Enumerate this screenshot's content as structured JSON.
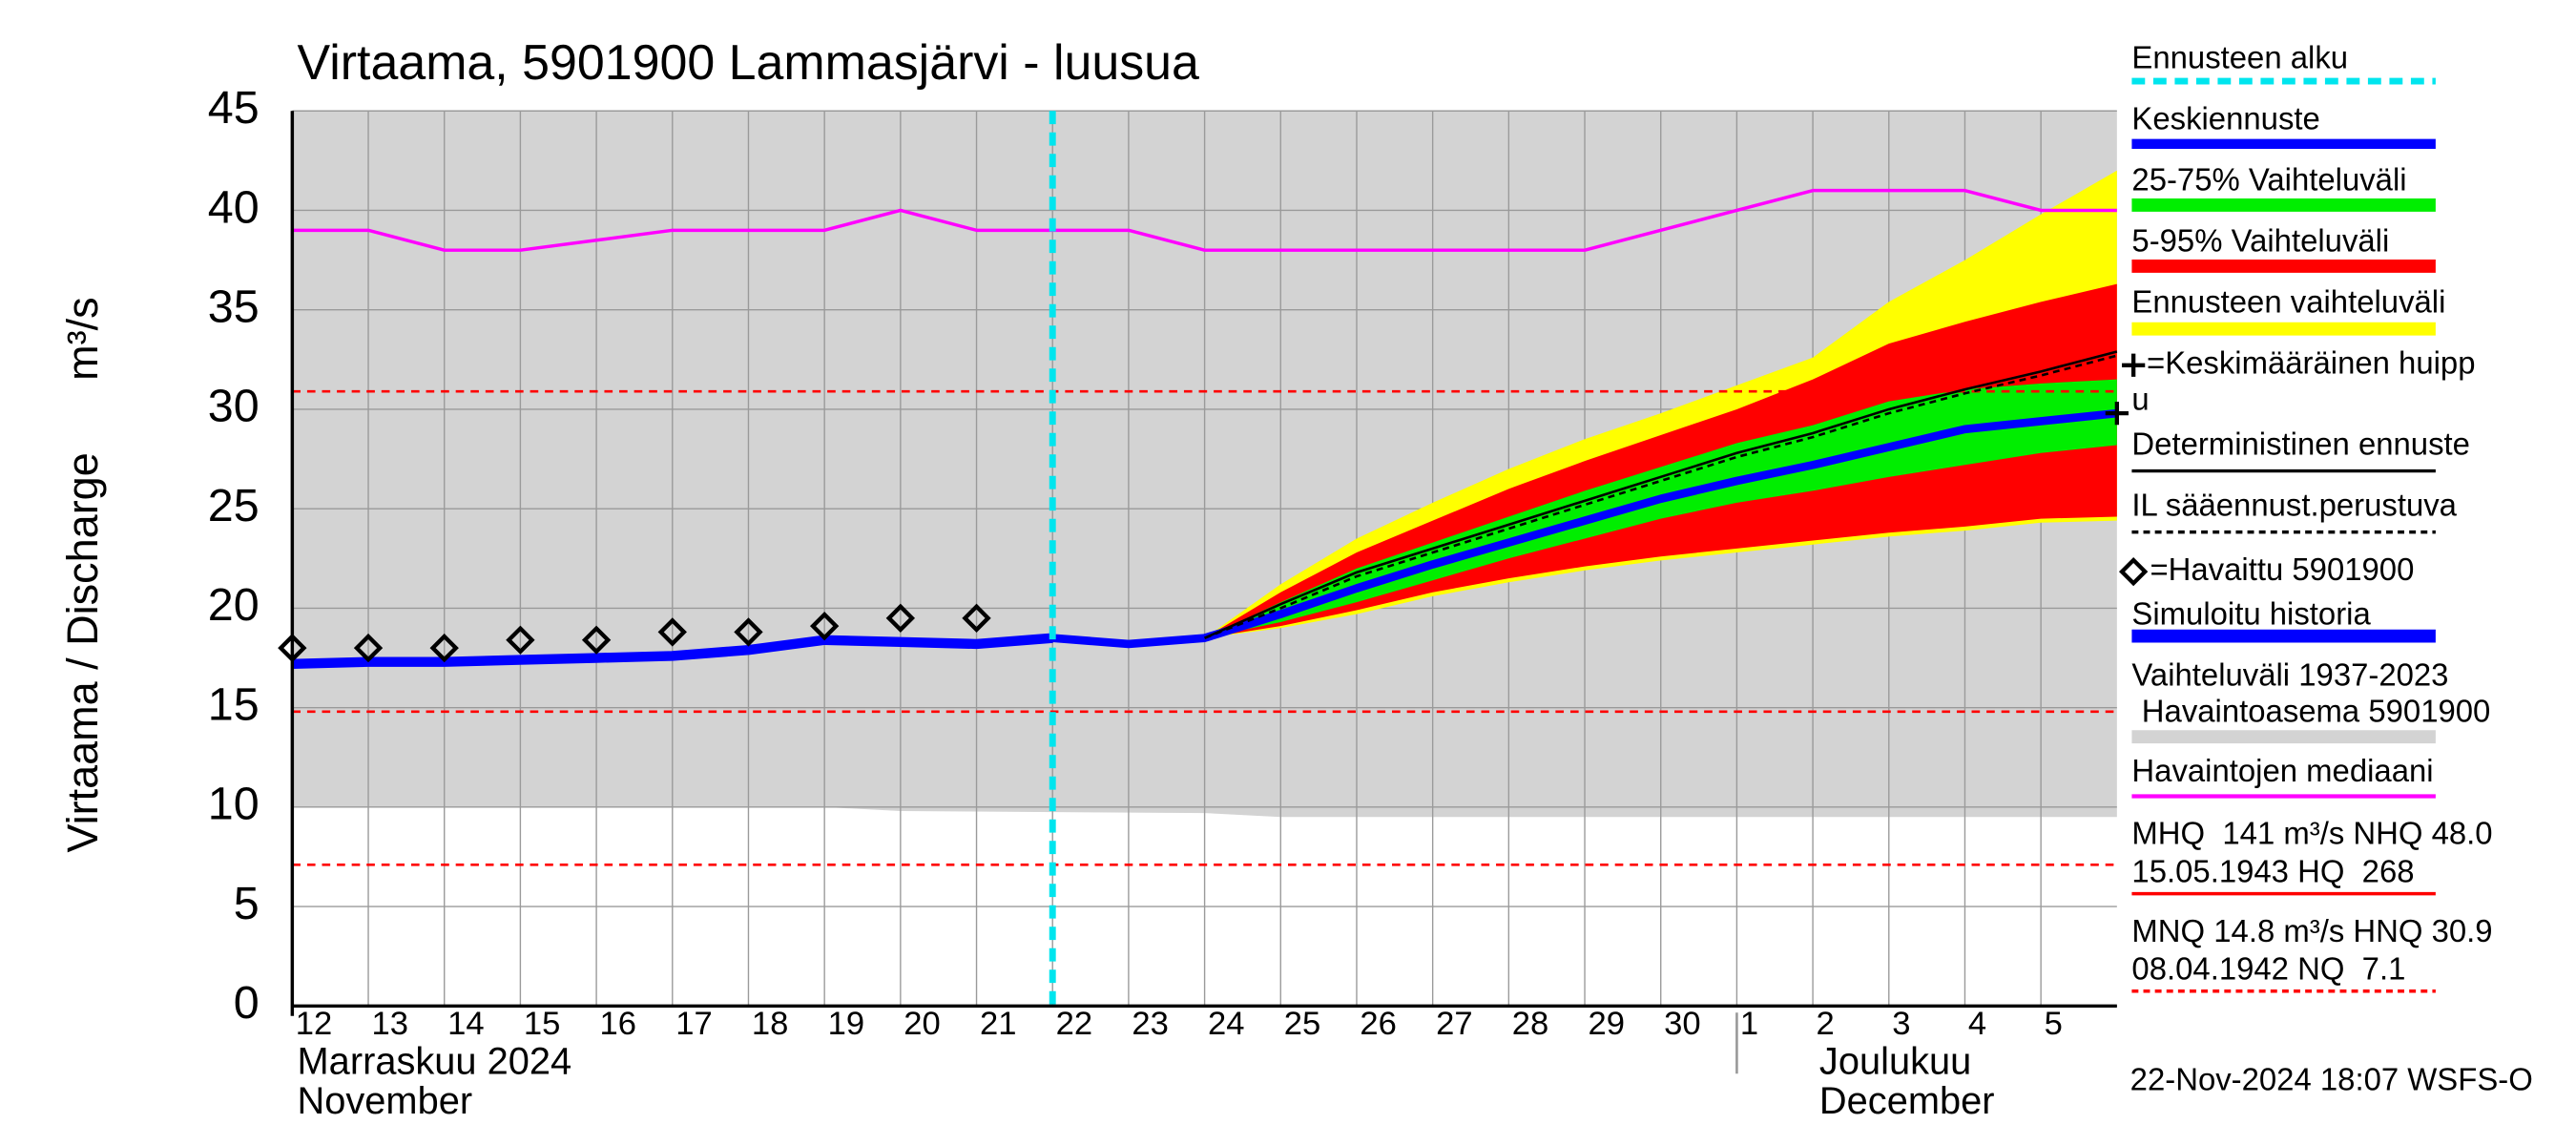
{
  "chart_data": {
    "type": "line",
    "title": "Virtaama, 5901900 Lammasjärvi - luusua",
    "y_label": "Virtaama / Discharge",
    "y_unit": "m³/s",
    "xlim": [
      0,
      24
    ],
    "xticks": [
      {
        "value": 0,
        "label": "12"
      },
      {
        "value": 1,
        "label": "13"
      },
      {
        "value": 2,
        "label": "14"
      },
      {
        "value": 3,
        "label": "15"
      },
      {
        "value": 4,
        "label": "16"
      },
      {
        "value": 5,
        "label": "17"
      },
      {
        "value": 6,
        "label": "18"
      },
      {
        "value": 7,
        "label": "19"
      },
      {
        "value": 8,
        "label": "20"
      },
      {
        "value": 9,
        "label": "21"
      },
      {
        "value": 10,
        "label": "22"
      },
      {
        "value": 11,
        "label": "23"
      },
      {
        "value": 12,
        "label": "24"
      },
      {
        "value": 13,
        "label": "25"
      },
      {
        "value": 14,
        "label": "26"
      },
      {
        "value": 15,
        "label": "27"
      },
      {
        "value": 16,
        "label": "28"
      },
      {
        "value": 17,
        "label": "29"
      },
      {
        "value": 18,
        "label": "30"
      },
      {
        "value": 19,
        "label": "1"
      },
      {
        "value": 20,
        "label": "2"
      },
      {
        "value": 21,
        "label": "3"
      },
      {
        "value": 22,
        "label": "4"
      },
      {
        "value": 23,
        "label": "5"
      }
    ],
    "ylim": [
      0,
      45
    ],
    "yticks": [
      0,
      5,
      10,
      15,
      20,
      25,
      30,
      35,
      40,
      45
    ],
    "grid": true,
    "month_labels": [
      {
        "value": 0,
        "lines": [
          "Marraskuu 2024",
          "November"
        ]
      },
      {
        "value": 19,
        "lines": [
          "Joulukuu",
          "December"
        ]
      }
    ],
    "forecast_start": {
      "name": "Ennusteen alku",
      "color": "#00e5ee",
      "x": 10
    },
    "bands": [
      {
        "name": "Vaihteluväli 1937-2023",
        "name_2": "Havaintoasema 5901900",
        "color": "#d3d3d3",
        "x": [
          0,
          7,
          8,
          12,
          13,
          24
        ],
        "lower": [
          10,
          10,
          9.8,
          9.7,
          9.5,
          9.5
        ],
        "upper": [
          45,
          45,
          45,
          45,
          45,
          45
        ]
      },
      {
        "name": "Ennusteen vaihteluväli",
        "color": "#ffff00",
        "x": [
          12,
          13,
          14,
          15,
          16,
          17,
          18,
          19,
          20,
          21,
          22,
          23,
          24
        ],
        "lower": [
          18.5,
          19,
          19.7,
          20.6,
          21.3,
          21.9,
          22.4,
          22.8,
          23.2,
          23.6,
          23.9,
          24.3,
          24.4
        ],
        "upper": [
          18.5,
          21.2,
          23.5,
          25.3,
          27,
          28.5,
          29.8,
          31.2,
          32.6,
          35.4,
          37.5,
          39.8,
          42
        ]
      },
      {
        "name": "5-95% Vaihteluväli",
        "color": "#ff0000",
        "x": [
          12,
          13,
          14,
          15,
          16,
          17,
          18,
          19,
          20,
          21,
          22,
          23,
          24
        ],
        "lower": [
          18.5,
          19.1,
          19.9,
          20.8,
          21.5,
          22.1,
          22.6,
          23,
          23.4,
          23.8,
          24.1,
          24.5,
          24.6
        ],
        "upper": [
          18.5,
          20.8,
          22.8,
          24.4,
          26,
          27.4,
          28.7,
          30,
          31.5,
          33.3,
          34.4,
          35.4,
          36.3
        ]
      },
      {
        "name": "25-75% Vaihteluväli",
        "color": "#00ee00",
        "x": [
          12,
          13,
          14,
          15,
          16,
          17,
          18,
          19,
          20,
          21,
          22,
          23,
          24
        ],
        "lower": [
          18.5,
          19.3,
          20.3,
          21.4,
          22.5,
          23.5,
          24.5,
          25.3,
          25.9,
          26.6,
          27.2,
          27.8,
          28.2
        ],
        "upper": [
          18.5,
          20.3,
          22,
          23.3,
          24.6,
          25.9,
          27.1,
          28.3,
          29.2,
          30.4,
          31,
          31.3,
          31.5
        ]
      }
    ],
    "series": [
      {
        "name": "Keskiennuste",
        "color": "#0000ff",
        "width": 5,
        "x": [
          10,
          11,
          12,
          13,
          14,
          15,
          16,
          17,
          18,
          19,
          20,
          21,
          22,
          23,
          24
        ],
        "values": [
          18.5,
          18.2,
          18.5,
          19.7,
          21,
          22.2,
          23.3,
          24.4,
          25.5,
          26.4,
          27.2,
          28.1,
          29,
          29.4,
          29.8
        ]
      },
      {
        "name": "Deterministinen ennuste",
        "color": "#000000",
        "width": 1.5,
        "x": [
          12,
          13,
          14,
          15,
          16,
          17,
          18,
          19,
          20,
          21,
          22,
          23,
          24
        ],
        "values": [
          18.5,
          20.2,
          21.8,
          23,
          24.2,
          25.4,
          26.6,
          27.8,
          28.8,
          30,
          31,
          31.9,
          32.9
        ]
      },
      {
        "name": "IL sääennust.perustuva",
        "color": "#000000",
        "width": 1.5,
        "dashed": true,
        "x": [
          12,
          13,
          14,
          15,
          16,
          17,
          18,
          19,
          20,
          21,
          22,
          23,
          24
        ],
        "values": [
          18.5,
          20,
          21.6,
          22.8,
          24,
          25.2,
          26.4,
          27.6,
          28.6,
          29.8,
          30.8,
          31.7,
          32.7
        ]
      },
      {
        "name": "Simuloitu historia",
        "color": "#0000ff",
        "width": 6,
        "x": [
          0,
          1,
          2,
          3,
          4,
          5,
          6,
          7,
          8,
          9,
          10
        ],
        "values": [
          17.2,
          17.3,
          17.3,
          17.4,
          17.5,
          17.6,
          17.9,
          18.4,
          18.3,
          18.2,
          18.5
        ]
      },
      {
        "name": "Havaintojen mediaani",
        "color": "#ff00ff",
        "width": 2,
        "x": [
          0,
          1,
          2,
          3,
          4,
          5,
          6,
          7,
          8,
          9,
          10,
          11,
          12,
          13,
          14,
          15,
          16,
          17,
          18,
          19,
          20,
          21,
          22,
          23,
          24
        ],
        "values": [
          39,
          39,
          38,
          38,
          38.5,
          39,
          39,
          39,
          40,
          39,
          39,
          39,
          38,
          38,
          38,
          38,
          38,
          38,
          39,
          40,
          41,
          41,
          41,
          40,
          40
        ]
      }
    ],
    "observed": {
      "name": "=Havaittu 5901900",
      "color": "#000000",
      "x": [
        0,
        1,
        2,
        3,
        4,
        5,
        6,
        7,
        8,
        9
      ],
      "values": [
        18,
        18,
        18,
        18.4,
        18.4,
        18.8,
        18.8,
        19.1,
        19.5,
        19.5
      ]
    },
    "peak": {
      "name": "=Keskimääräinen huipp",
      "name_2": "u",
      "color": "#000000",
      "x": 24,
      "value": 29.8
    },
    "reference_lines": {
      "color": "#ff0000",
      "values": [
        30.9,
        14.8,
        7.1
      ]
    },
    "notes": [
      {
        "lines": [
          "MHQ  141 m³/s NHQ 48.0",
          "15.05.1943 HQ  268"
        ],
        "color": "#ff0000"
      },
      {
        "lines": [
          "MNQ 14.8 m³/s HNQ 30.9",
          "08.04.1942 NQ  7.1"
        ],
        "color": "#ff0000",
        "dashed": true
      }
    ],
    "footer": "22-Nov-2024 18:07 WSFS-O"
  }
}
